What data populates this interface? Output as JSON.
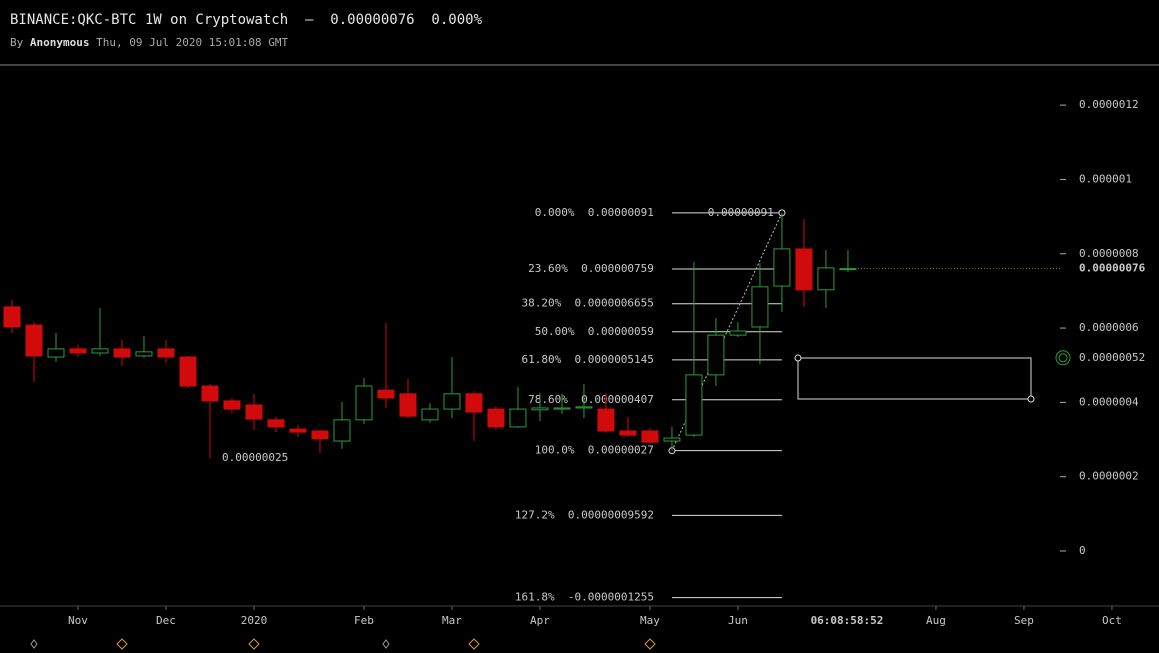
{
  "chart_data": {
    "type": "candlestick",
    "title": "BINANCE:QKC-BTC 1W on Cryptowatch  –  0.00000076  0.000%",
    "byline_prefix": "By",
    "author": "Anonymous",
    "date": "Thu, 09 Jul 2020 15:01:08 GMT",
    "x": [
      0,
      1,
      2,
      3,
      4,
      5,
      6,
      7,
      8,
      9,
      10,
      11,
      12,
      13,
      14,
      15,
      16,
      17,
      18,
      19,
      20,
      21,
      22,
      23,
      24,
      25,
      26,
      27,
      28,
      29,
      30,
      31,
      32,
      33,
      34,
      35,
      36,
      37,
      38
    ],
    "open": [
      6.57e-07,
      6.08e-07,
      5.22e-07,
      5.44e-07,
      5.33e-07,
      5.44e-07,
      5.25e-07,
      5.44e-07,
      5.22e-07,
      4.44e-07,
      4.04e-07,
      3.93e-07,
      3.53e-07,
      3.28e-07,
      3.23e-07,
      2.96e-07,
      3.53e-07,
      4.33e-07,
      4.23e-07,
      3.53e-07,
      3.82e-07,
      4.23e-07,
      3.82e-07,
      3.34e-07,
      3.8e-07,
      3.82e-07,
      3.85e-07,
      3.82e-07,
      3.23e-07,
      3.23e-07,
      2.96e-07,
      3.12e-07,
      4.74e-07,
      5.81e-07,
      6.03e-07,
      7.13e-07,
      8.13e-07,
      7.03e-07,
      7.59e-07
    ],
    "high": [
      6.76e-07,
      6.16e-07,
      5.87e-07,
      5.55e-07,
      6.54e-07,
      5.68e-07,
      5.79e-07,
      5.68e-07,
      5.25e-07,
      4.5e-07,
      4.12e-07,
      4.23e-07,
      3.61e-07,
      3.39e-07,
      3.26e-07,
      4.01e-07,
      4.66e-07,
      6.14e-07,
      4.63e-07,
      3.98e-07,
      5.22e-07,
      4.31e-07,
      3.9e-07,
      4.41e-07,
      4.25e-07,
      4.23e-07,
      4.5e-07,
      4.25e-07,
      3.61e-07,
      3.31e-07,
      3.34e-07,
      7.78e-07,
      6.27e-07,
      6.16e-07,
      7.75e-07,
      9.1e-07,
      8.94e-07,
      8.1e-07,
      8.1e-07
    ],
    "low": [
      5.87e-07,
      4.55e-07,
      5.09e-07,
      5.22e-07,
      5.25e-07,
      4.98e-07,
      5.2e-07,
      5.06e-07,
      4.39e-07,
      2.5e-07,
      3.71e-07,
      3.26e-07,
      3.2e-07,
      3.07e-07,
      2.64e-07,
      2.75e-07,
      3.42e-07,
      3.85e-07,
      3.58e-07,
      3.45e-07,
      3.58e-07,
      2.96e-07,
      3.26e-07,
      3.31e-07,
      3.5e-07,
      3.69e-07,
      3.58e-07,
      3.18e-07,
      3.07e-07,
      2.91e-07,
      2.7e-07,
      3.07e-07,
      4.44e-07,
      5.76e-07,
      5.03e-07,
      6.43e-07,
      6.57e-07,
      6.54e-07,
      7.51e-07
    ],
    "close": [
      6.03e-07,
      5.25e-07,
      5.44e-07,
      5.33e-07,
      5.44e-07,
      5.22e-07,
      5.36e-07,
      5.22e-07,
      4.44e-07,
      4.04e-07,
      3.82e-07,
      3.55e-07,
      3.34e-07,
      3.2e-07,
      3.02e-07,
      3.53e-07,
      4.44e-07,
      4.12e-07,
      3.63e-07,
      3.82e-07,
      4.23e-07,
      3.74e-07,
      3.34e-07,
      3.82e-07,
      3.85e-07,
      3.85e-07,
      3.88e-07,
      3.23e-07,
      3.12e-07,
      2.93e-07,
      3.04e-07,
      4.74e-07,
      5.81e-07,
      5.92e-07,
      7.11e-07,
      8.13e-07,
      7.03e-07,
      7.62e-07,
      7.6e-07
    ],
    "up_color": "#2e9b3a",
    "down_color": "#d10b0b",
    "xlim": [
      -0.545,
      52.14
    ],
    "xticks": [
      {
        "value": 3,
        "label": "Nov"
      },
      {
        "value": 7,
        "label": "Dec"
      },
      {
        "value": 11,
        "label": "2020"
      },
      {
        "value": 16,
        "label": "Feb"
      },
      {
        "value": 20,
        "label": "Mar"
      },
      {
        "value": 24,
        "label": "Apr"
      },
      {
        "value": 29,
        "label": "May"
      },
      {
        "value": 33,
        "label": "Jun"
      },
      {
        "value": 42,
        "label": "Aug"
      },
      {
        "value": 46,
        "label": "Sep"
      },
      {
        "value": 50,
        "label": "Oct"
      }
    ],
    "ylim": [
      -1.48e-07,
      1.308e-06
    ],
    "yticks": [
      {
        "value": 1.2e-06,
        "label": "0.0000012"
      },
      {
        "value": 1e-06,
        "label": "0.000001"
      },
      {
        "value": 8e-07,
        "label": "0.0000008"
      },
      {
        "value": 6e-07,
        "label": "0.0000006"
      },
      {
        "value": 4e-07,
        "label": "0.0000004"
      },
      {
        "value": 2e-07,
        "label": "0.0000002"
      },
      0
    ],
    "last_price": {
      "value": 7.6e-07,
      "label": "0.00000076"
    },
    "marker_price": {
      "value": 5.2e-07,
      "label": "0.00000052"
    },
    "low_annotation": {
      "value": 2.5e-07,
      "label": "0.00000025"
    },
    "trend_end_label": {
      "value": 9.1e-07,
      "label": "0.00000091"
    },
    "countdown": "06:08:58:52",
    "fibonacci": [
      {
        "ratio": "0.000%",
        "value": 9.1e-07,
        "label": "0.00000091"
      },
      {
        "ratio": "23.60%",
        "value": 7.59e-07,
        "label": "0.000000759"
      },
      {
        "ratio": "38.20%",
        "value": 6.655e-07,
        "label": "0.0000006655"
      },
      {
        "ratio": "50.00%",
        "value": 5.9e-07,
        "label": "0.00000059"
      },
      {
        "ratio": "61.80%",
        "value": 5.145e-07,
        "label": "0.0000005145"
      },
      {
        "ratio": "78.60%",
        "value": 4.07e-07,
        "label": "0.000000407"
      },
      {
        "ratio": "100.0%",
        "value": 2.7e-07,
        "label": "0.00000027"
      },
      {
        "ratio": "127.2%",
        "value": 9.592e-08,
        "label": "0.00000009592"
      },
      {
        "ratio": "161.8%",
        "value": -1.255e-07,
        "label": "-0.0000001255"
      }
    ]
  }
}
